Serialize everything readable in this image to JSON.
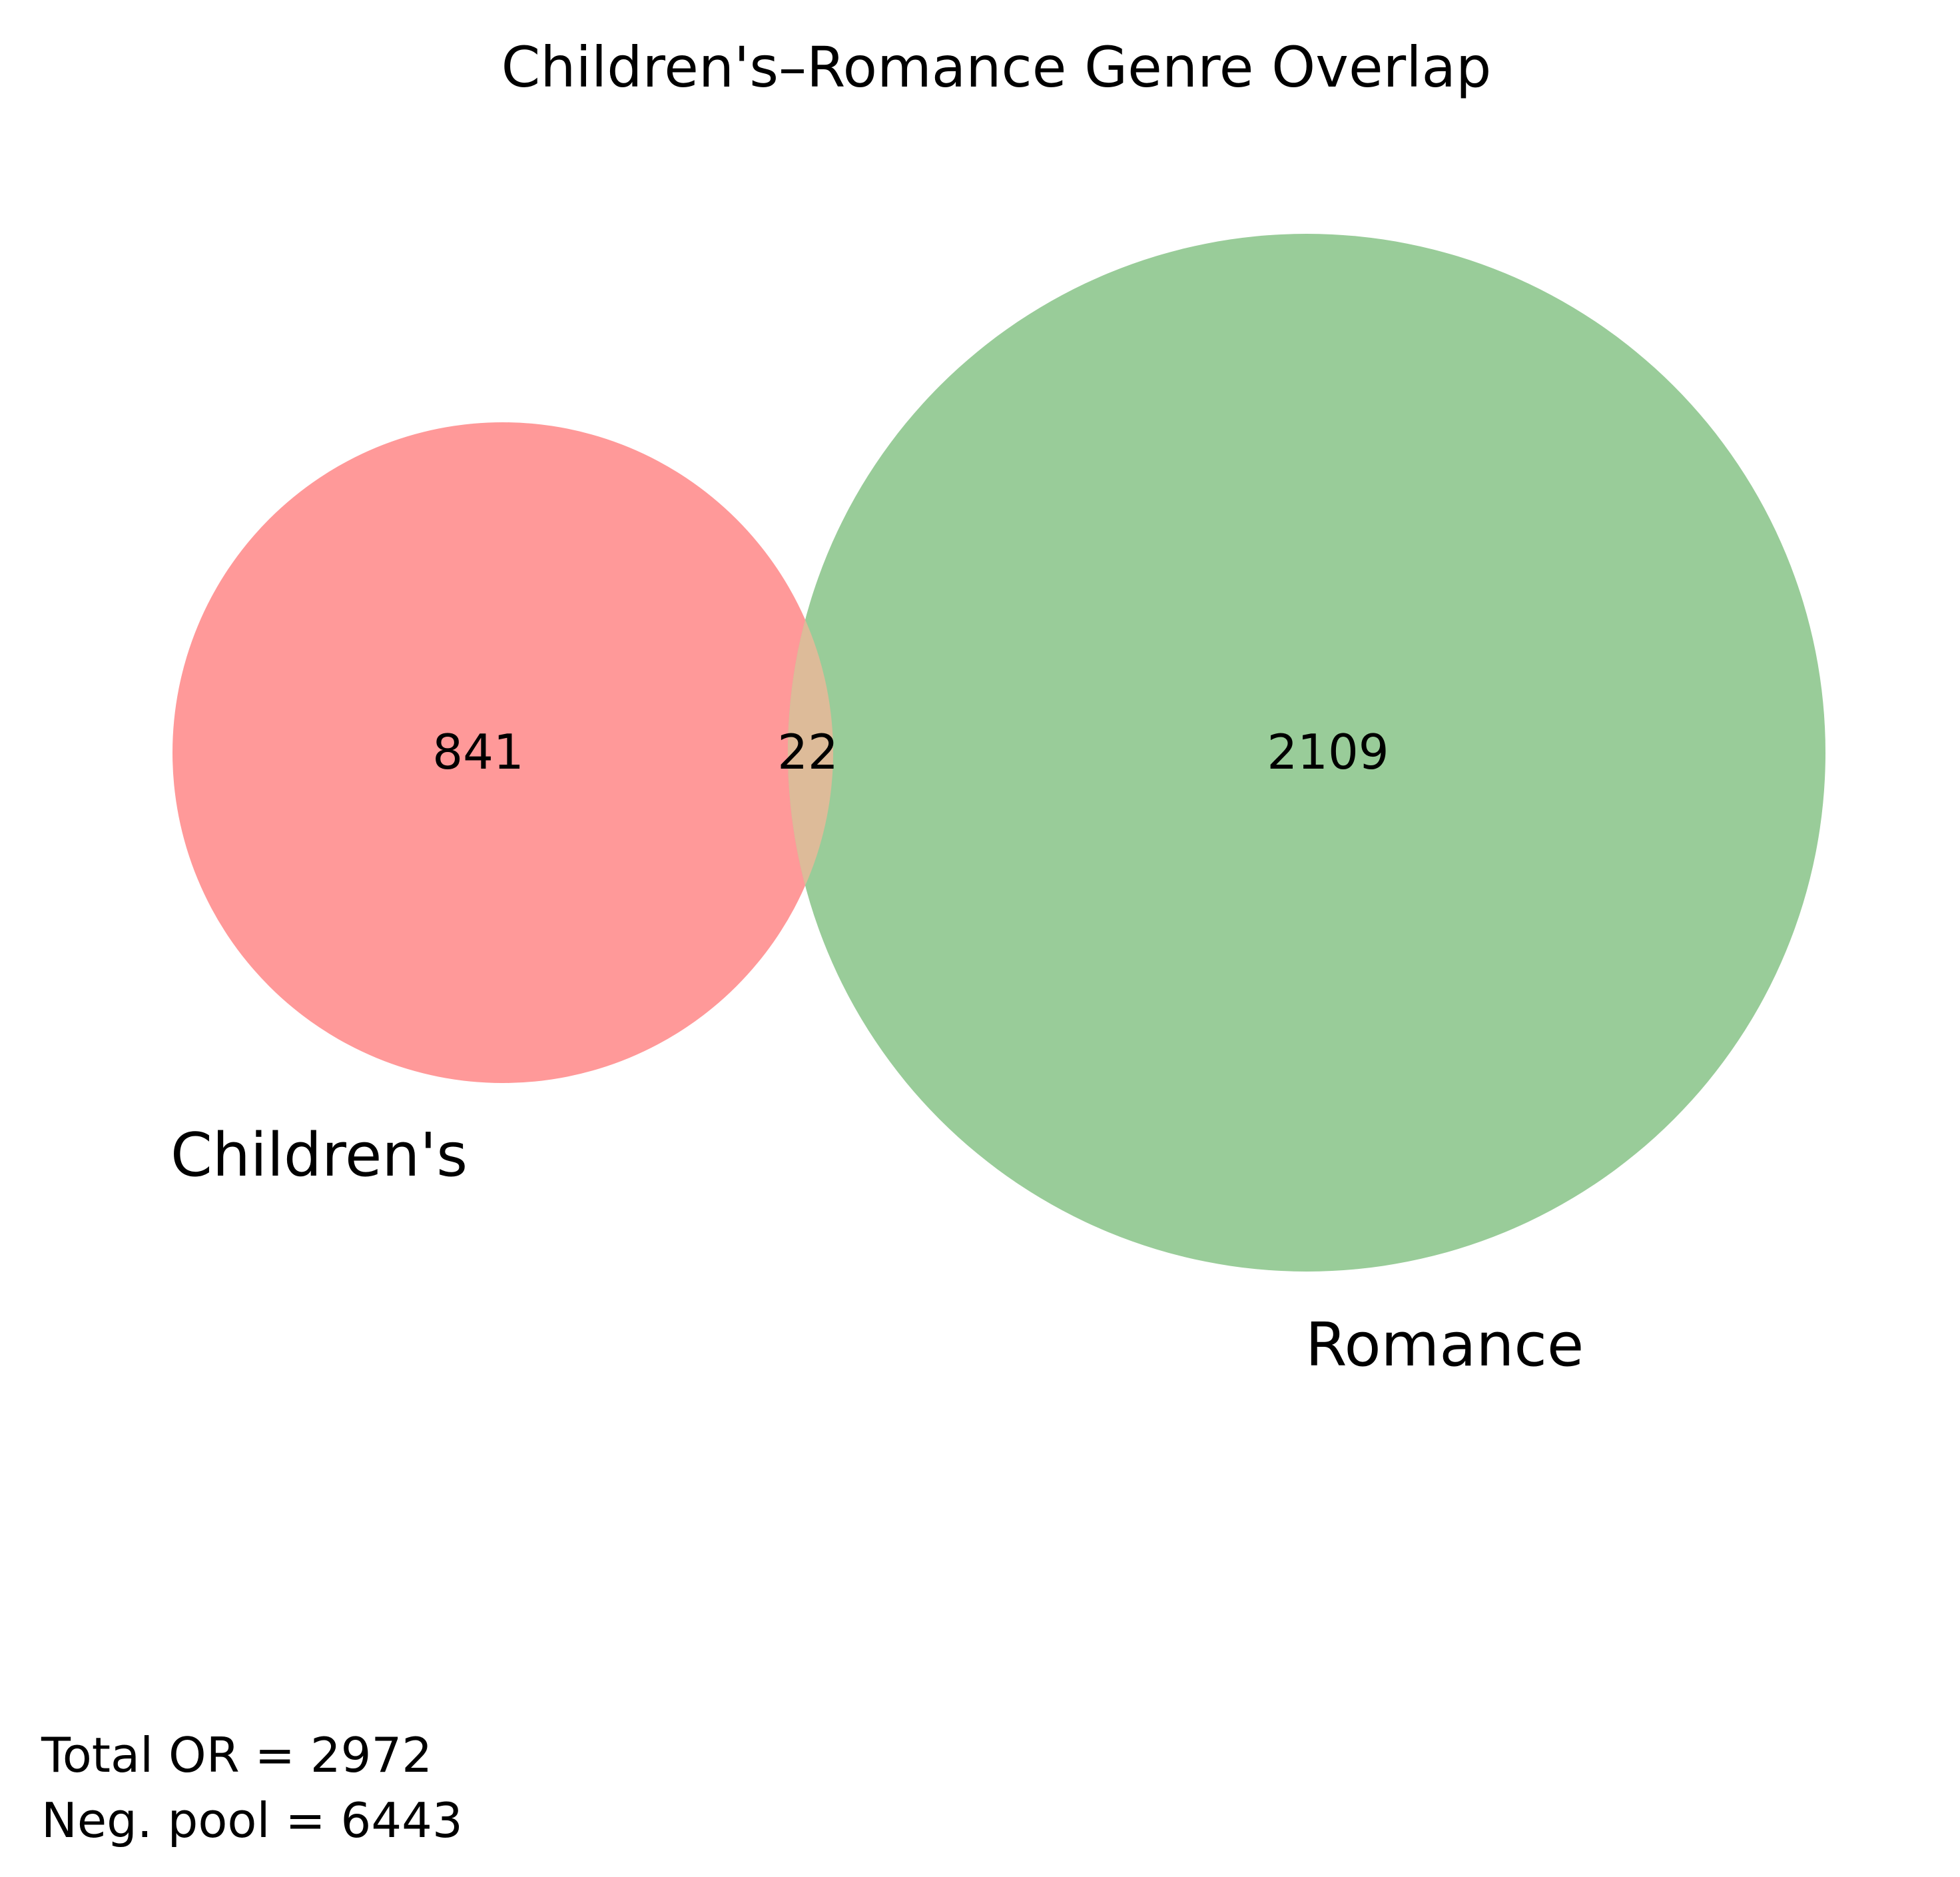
{
  "chart_data": {
    "type": "venn",
    "title": "Children's–Romance Genre Overlap",
    "sets": [
      {
        "name": "Children's",
        "only": 841,
        "color": "#ff9999"
      },
      {
        "name": "Romance",
        "only": 2109,
        "color": "#99cc99"
      }
    ],
    "intersection": 22,
    "intersection_color": "#ddbb99",
    "footnotes": [
      "Total OR = 2972",
      "Neg. pool = 6443"
    ]
  }
}
